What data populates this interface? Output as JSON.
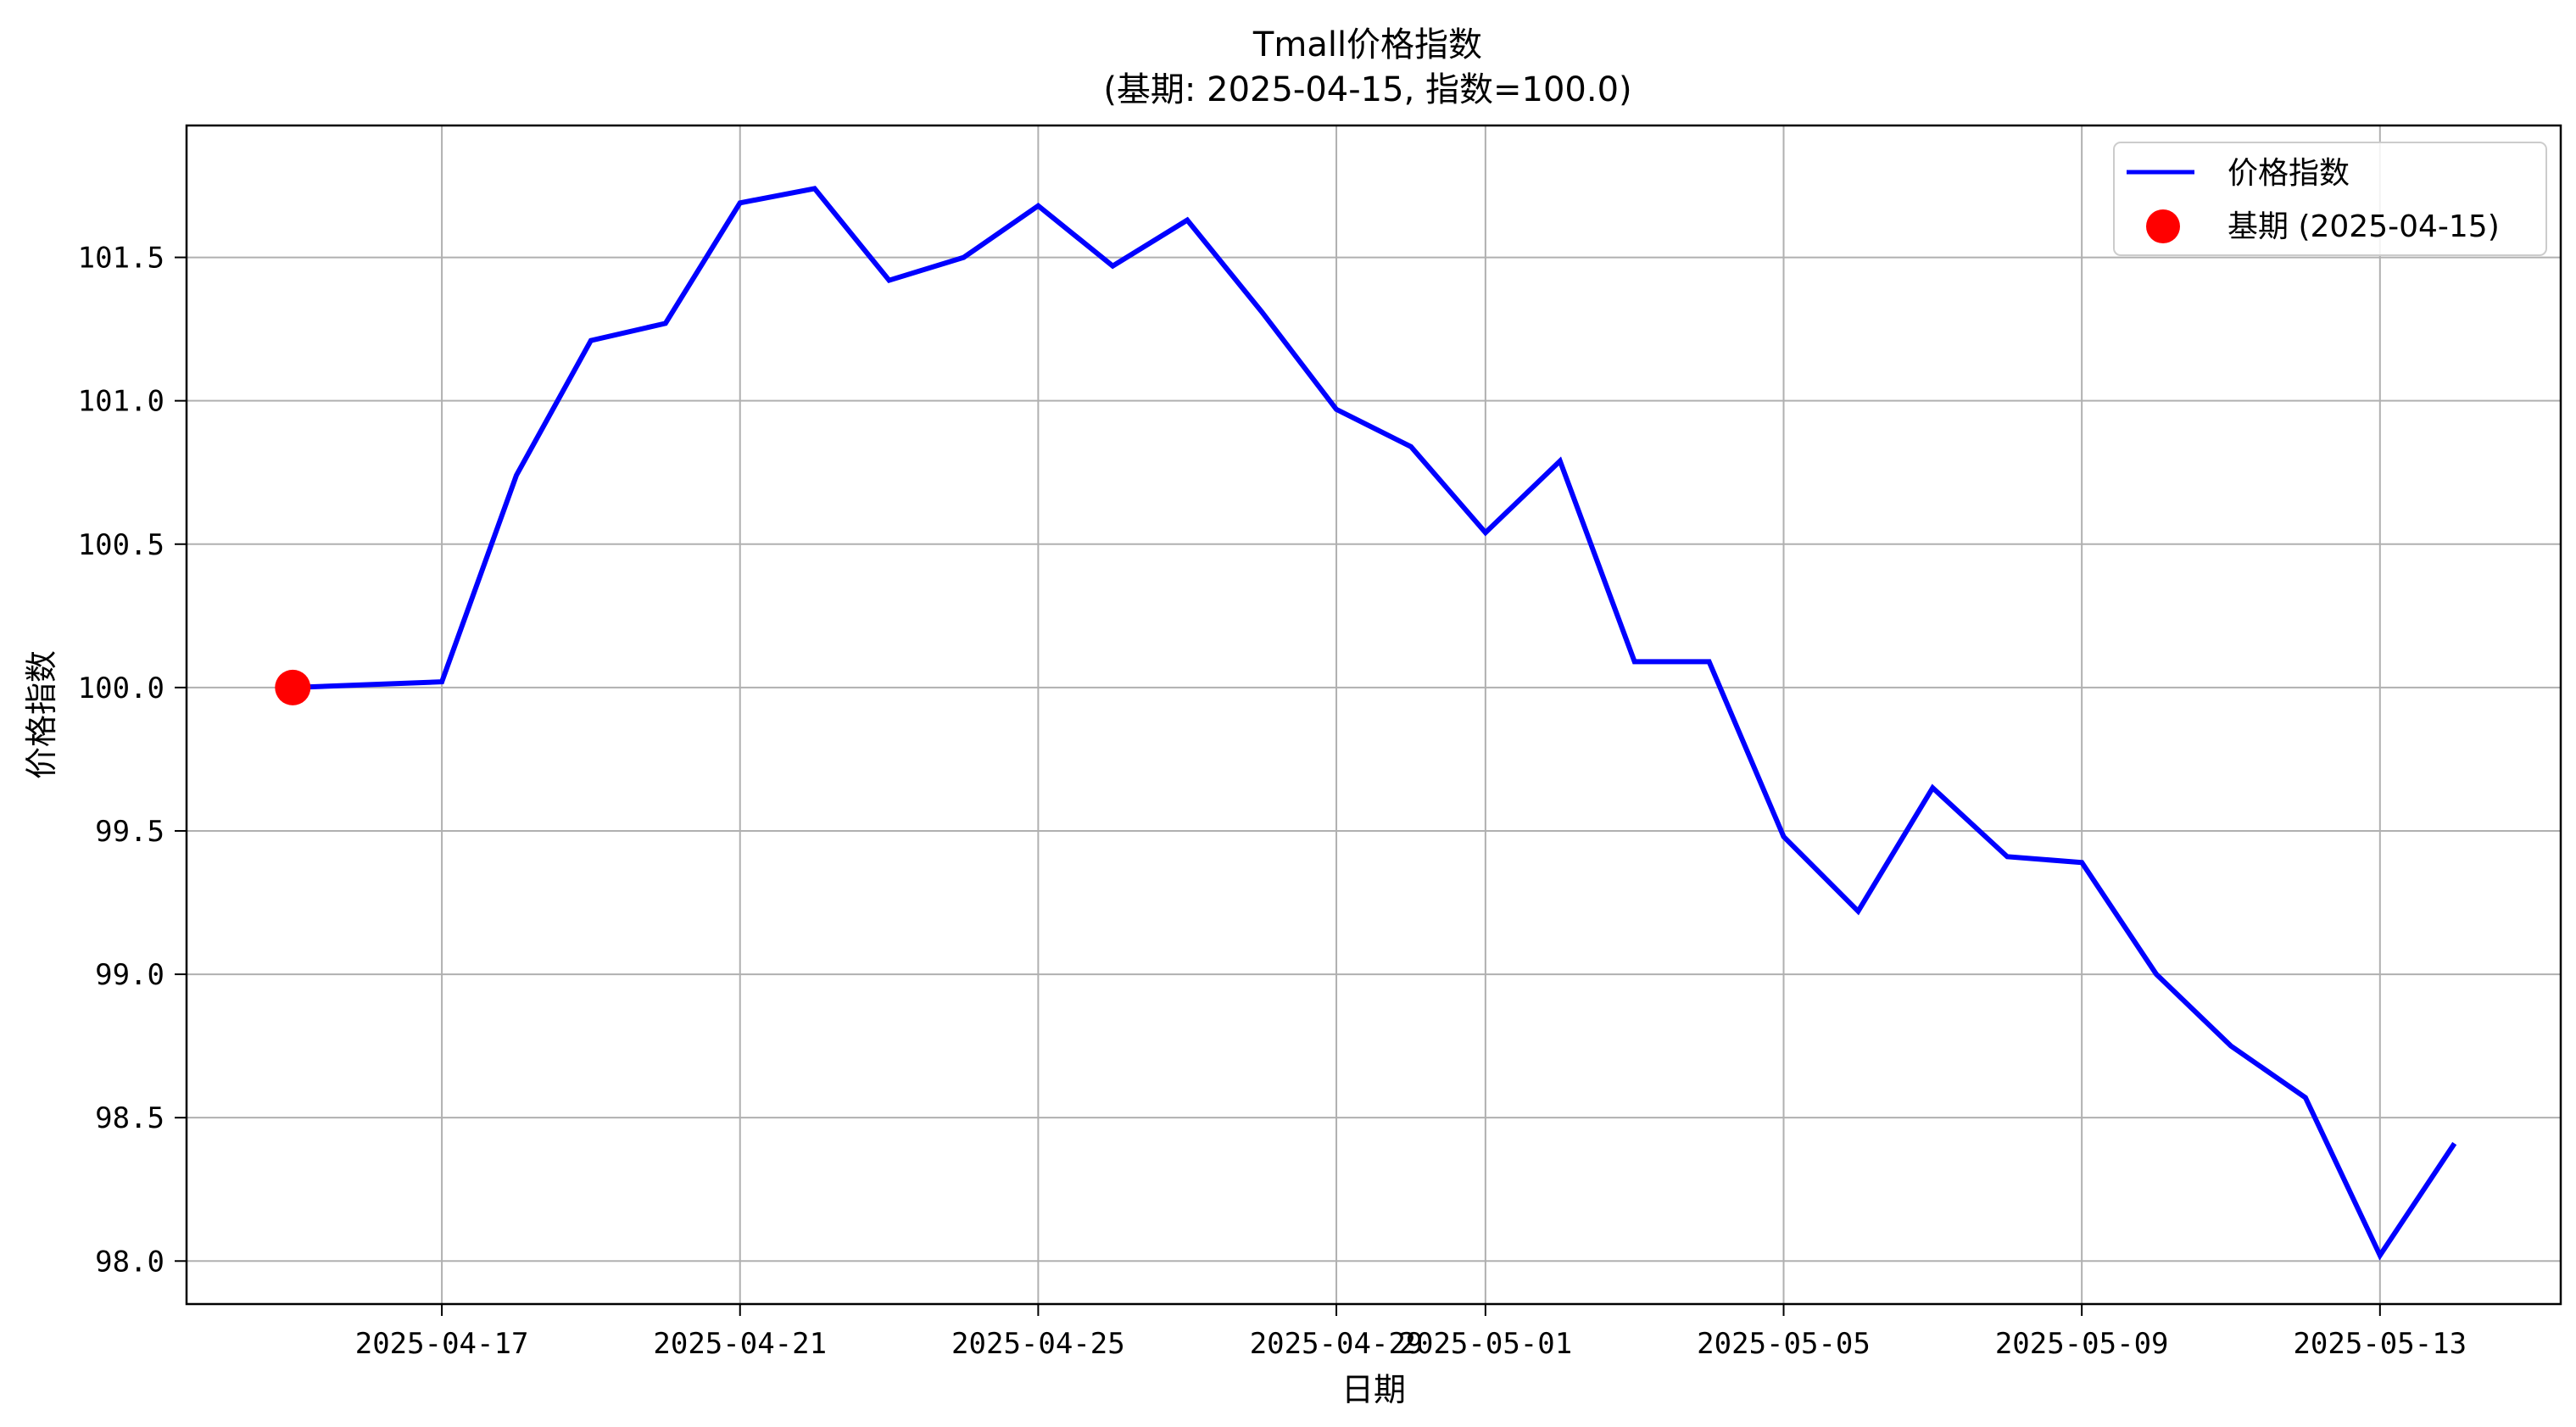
{
  "chart_data": {
    "type": "line",
    "title": "Tmall价格指数",
    "subtitle": "(基期: 2025-04-15, 指数=100.0)",
    "xlabel": "日期",
    "ylabel": "价格指数",
    "x": [
      "2025-04-15",
      "2025-04-16",
      "2025-04-17",
      "2025-04-18",
      "2025-04-19",
      "2025-04-20",
      "2025-04-21",
      "2025-04-22",
      "2025-04-23",
      "2025-04-24",
      "2025-04-25",
      "2025-04-26",
      "2025-04-27",
      "2025-04-28",
      "2025-04-29",
      "2025-04-30",
      "2025-05-01",
      "2025-05-02",
      "2025-05-03",
      "2025-05-04",
      "2025-05-05",
      "2025-05-06",
      "2025-05-07",
      "2025-05-08",
      "2025-05-09",
      "2025-05-10",
      "2025-05-11",
      "2025-05-12",
      "2025-05-13",
      "2025-05-14"
    ],
    "series": [
      {
        "name": "价格指数",
        "color": "#0000ff",
        "values": [
          100.0,
          100.01,
          100.02,
          100.74,
          101.21,
          101.27,
          101.69,
          101.74,
          101.42,
          101.5,
          101.68,
          101.47,
          101.63,
          101.31,
          100.97,
          100.84,
          100.54,
          100.79,
          100.09,
          100.09,
          99.48,
          99.22,
          99.65,
          99.41,
          99.39,
          99.0,
          98.75,
          98.57,
          98.02,
          98.41
        ]
      }
    ],
    "base_point": {
      "name": "基期 (2025-04-15)",
      "x": "2025-04-15",
      "y": 100.0,
      "color": "#ff0000"
    },
    "x_ticks": [
      "2025-04-17",
      "2025-04-21",
      "2025-04-25",
      "2025-04-29",
      "2025-05-01",
      "2025-05-05",
      "2025-05-09",
      "2025-05-13"
    ],
    "y_ticks": [
      "98.0",
      "98.5",
      "99.0",
      "99.5",
      "100.0",
      "100.5",
      "101.0",
      "101.5"
    ],
    "ylim": [
      97.85,
      101.96
    ],
    "xlim": [
      "2025-04-13 13:48",
      "2025-05-15 10:12"
    ],
    "grid": true,
    "legend_position": "top-right"
  }
}
